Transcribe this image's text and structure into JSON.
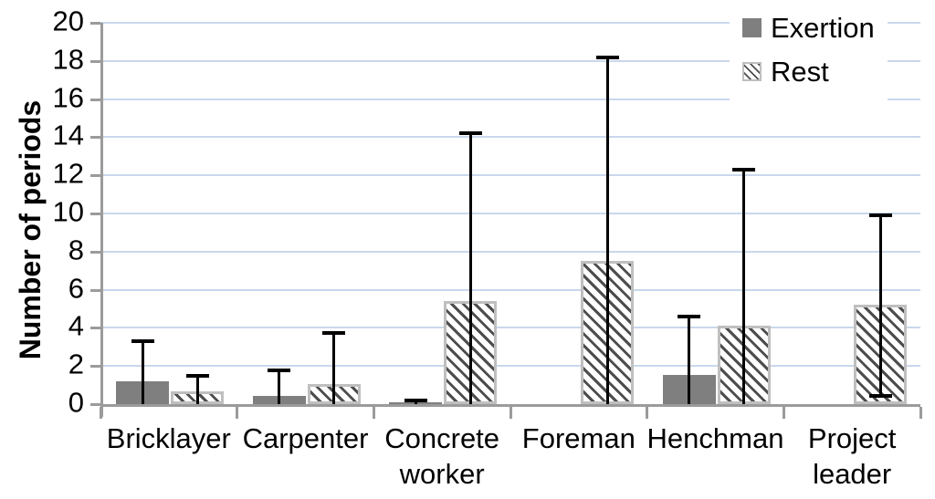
{
  "chart_data": {
    "type": "bar",
    "title": "",
    "xlabel": "",
    "ylabel": "Number of periods",
    "ylim": [
      0,
      20
    ],
    "ytick_step": 2,
    "ytick_labels": [
      "0",
      "2",
      "4",
      "6",
      "8",
      "10",
      "12",
      "14",
      "16",
      "18",
      "20"
    ],
    "grid": true,
    "legend_position": "top-right",
    "categories": [
      "Bricklayer",
      "Carpenter",
      "Concrete worker",
      "Foreman",
      "Henchman",
      "Project leader"
    ],
    "series": [
      {
        "name": "Exertion",
        "style": "solid",
        "values": [
          1.2,
          0.45,
          0.1,
          0,
          1.55,
          0
        ],
        "error_top": [
          3.3,
          1.75,
          0.2,
          null,
          4.6,
          null
        ],
        "error_bottom": [
          0,
          0,
          0,
          null,
          0,
          null
        ]
      },
      {
        "name": "Rest",
        "style": "hatch",
        "values": [
          0.65,
          1.05,
          5.4,
          7.5,
          4.1,
          5.2
        ],
        "error_top": [
          1.5,
          3.75,
          14.2,
          18.2,
          12.3,
          9.9
        ],
        "error_bottom": [
          0,
          0,
          0,
          0,
          0,
          0.45
        ]
      }
    ],
    "colors": {
      "exertion_fill": "#7f7f7f",
      "rest_border": "#bfbfbf",
      "rest_hatch_line": "#4d4d4d",
      "gridline": "#c9d7ec",
      "axis": "#9b9b9b",
      "error_bar": "#000000",
      "text": "#000000"
    }
  }
}
